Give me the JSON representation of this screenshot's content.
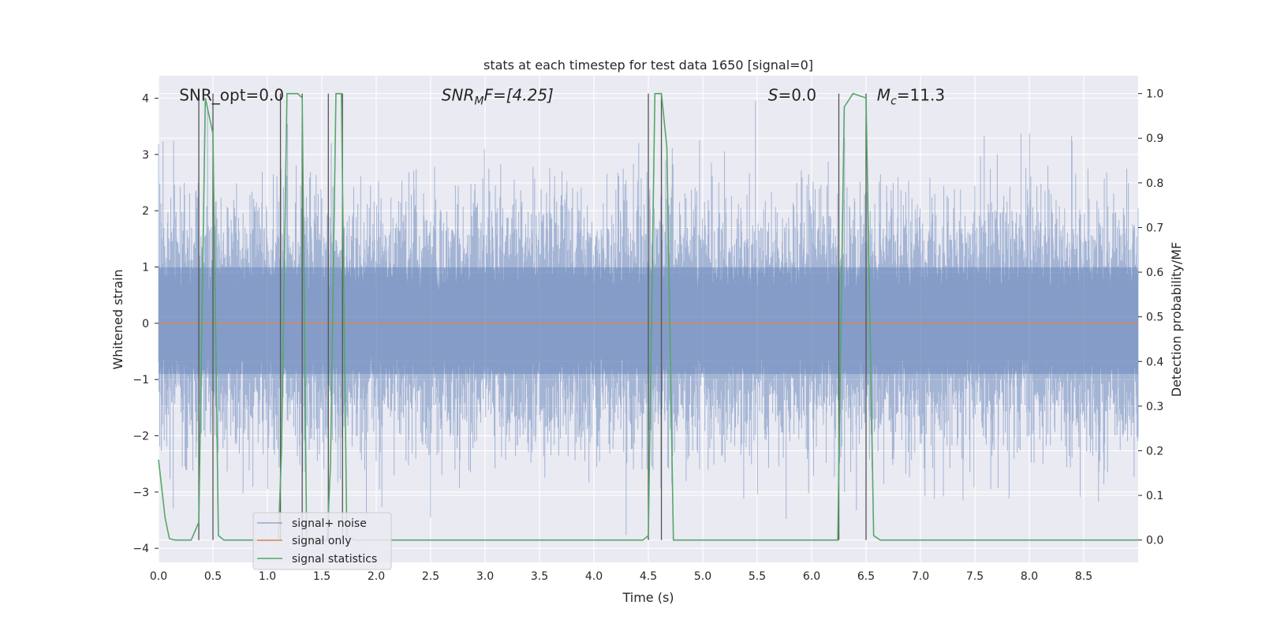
{
  "chart_data": {
    "type": "line",
    "title": "stats at each timestep for test data 1650 [signal=0]",
    "xlabel": "Time (s)",
    "ylabel": "Whitened strain",
    "ylabel_right": "Detection probability/MF",
    "xlim": [
      0.0,
      9.0
    ],
    "ylim": [
      -4.25,
      4.4
    ],
    "ylim_right": [
      -0.05,
      1.04
    ],
    "xticks": [
      0.0,
      0.5,
      1.0,
      1.5,
      2.0,
      2.5,
      3.0,
      3.5,
      4.0,
      4.5,
      5.0,
      5.5,
      6.0,
      6.5,
      7.0,
      7.5,
      8.0,
      8.5
    ],
    "xtick_labels": [
      "0.0",
      "0.5",
      "1.0",
      "1.5",
      "2.0",
      "2.5",
      "3.0",
      "3.5",
      "4.0",
      "4.5",
      "5.0",
      "5.5",
      "6.0",
      "6.5",
      "7.0",
      "7.5",
      "8.0",
      "8.5"
    ],
    "yticks": [
      -4,
      -3,
      -2,
      -1,
      0,
      1,
      2,
      3,
      4
    ],
    "ytick_labels": [
      "−4",
      "−3",
      "−2",
      "−1",
      "0",
      "1",
      "2",
      "3",
      "4"
    ],
    "yticks_right": [
      0.0,
      0.1,
      0.2,
      0.3,
      0.4,
      0.5,
      0.6,
      0.7,
      0.8,
      0.9,
      1.0
    ],
    "ytick_labels_right": [
      "0.0",
      "0.1",
      "0.2",
      "0.3",
      "0.4",
      "0.5",
      "0.6",
      "0.7",
      "0.8",
      "0.9",
      "1.0"
    ],
    "grid": true,
    "legend_position": "lower-left",
    "colors": {
      "signal_noise": "#4c72b0",
      "signal_only": "#dd8452",
      "statistics": "#55a868",
      "vlines": "#555555",
      "background": "#eaeaf2",
      "grid": "#ffffff"
    },
    "annotations": [
      {
        "x": 0.19,
        "y": 4.0,
        "base": "SNR_opt=0.0",
        "sub": "",
        "rest": "",
        "italic": false
      },
      {
        "x": 2.6,
        "y": 4.0,
        "base": "SNR",
        "sub": "M",
        "rest": "F=[4.25]",
        "italic": true
      },
      {
        "x": 5.6,
        "y": 4.0,
        "base": "S",
        "sub": "",
        "rest": "=0.0",
        "italic": true
      },
      {
        "x": 6.6,
        "y": 4.0,
        "base": "M",
        "sub": "c",
        "rest": "=11.3",
        "italic": true
      }
    ],
    "series": [
      {
        "name": "signal+ noise",
        "noise_envelope": {
          "typical_max": 2.0,
          "peak_max": 3.95,
          "typical_min": -2.0,
          "peak_min": -3.85,
          "x_start": 0.0,
          "x_end": 9.0
        }
      },
      {
        "name": "signal only",
        "x": [
          0.0,
          9.0
        ],
        "y": [
          0.0,
          0.0
        ]
      },
      {
        "name": "signal statistics",
        "x": [
          0.0,
          0.06,
          0.1,
          0.15,
          0.3,
          0.37,
          0.43,
          0.5,
          0.55,
          0.6,
          0.8,
          1.0,
          1.1,
          1.13,
          1.18,
          1.22,
          1.28,
          1.32,
          1.36,
          1.4,
          1.55,
          1.58,
          1.63,
          1.68,
          1.73,
          1.8,
          2.0,
          3.0,
          4.0,
          4.45,
          4.5,
          4.56,
          4.62,
          4.67,
          4.73,
          4.8,
          5.0,
          6.0,
          6.24,
          6.3,
          6.38,
          6.5,
          6.57,
          6.63,
          6.7,
          7.0,
          8.0,
          9.0
        ],
        "y": [
          0.18,
          0.05,
          0.003,
          0.0,
          0.0,
          0.04,
          0.99,
          0.91,
          0.01,
          0.0,
          0.0,
          0.0,
          0.0,
          0.2,
          1.0,
          1.0,
          1.0,
          0.99,
          0.01,
          0.0,
          0.0,
          0.17,
          1.0,
          1.0,
          0.01,
          0.0,
          0.0,
          0.0,
          0.0,
          0.0,
          0.01,
          1.0,
          1.0,
          0.88,
          0.0,
          0.0,
          0.0,
          0.0,
          0.0,
          0.97,
          1.0,
          0.99,
          0.01,
          0.0,
          0.0,
          0.0,
          0.0,
          0.0
        ]
      }
    ],
    "vlines": [
      {
        "x": 0.37,
        "y_from": 0.0,
        "y_to": 1.0
      },
      {
        "x": 0.5,
        "y_from": 0.0,
        "y_to": 1.0
      },
      {
        "x": 1.12,
        "y_from": 0.0,
        "y_to": 1.0
      },
      {
        "x": 1.32,
        "y_from": 0.0,
        "y_to": 1.0
      },
      {
        "x": 1.56,
        "y_from": 0.0,
        "y_to": 1.0
      },
      {
        "x": 1.69,
        "y_from": 0.0,
        "y_to": 1.0
      },
      {
        "x": 4.5,
        "y_from": 0.0,
        "y_to": 1.0
      },
      {
        "x": 4.62,
        "y_from": 0.0,
        "y_to": 1.0
      },
      {
        "x": 6.25,
        "y_from": 0.0,
        "y_to": 1.0
      },
      {
        "x": 6.5,
        "y_from": 0.0,
        "y_to": 1.0
      }
    ]
  }
}
